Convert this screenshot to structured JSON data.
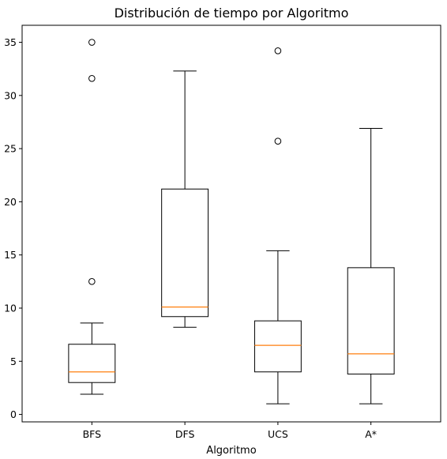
{
  "chart_data": {
    "type": "boxplot",
    "title": "Distribución de tiempo por Algoritmo",
    "xlabel": "Algoritmo",
    "ylabel": "",
    "categories": [
      "BFS",
      "DFS",
      "UCS",
      "A*"
    ],
    "ylim": [
      -0.7,
      36.6
    ],
    "yticks": [
      0,
      5,
      10,
      15,
      20,
      25,
      30,
      35
    ],
    "grid": false,
    "boxes": [
      {
        "category": "BFS",
        "whisker_low": 1.9,
        "q1": 3.0,
        "median": 4.0,
        "q3": 6.6,
        "whisker_high": 8.6,
        "outliers": [
          12.5,
          31.6,
          35.0
        ]
      },
      {
        "category": "DFS",
        "whisker_low": 8.2,
        "q1": 9.2,
        "median": 10.1,
        "q3": 21.2,
        "whisker_high": 32.3,
        "outliers": []
      },
      {
        "category": "UCS",
        "whisker_low": 1.0,
        "q1": 4.0,
        "median": 6.5,
        "q3": 8.8,
        "whisker_high": 15.4,
        "outliers": [
          25.7,
          34.2
        ]
      },
      {
        "category": "A*",
        "whisker_low": 1.0,
        "q1": 3.8,
        "median": 5.7,
        "q3": 13.8,
        "whisker_high": 26.9,
        "outliers": []
      }
    ],
    "colors": {
      "box": "#000000",
      "median": "#ff7f0e",
      "outlier": "#000000"
    }
  }
}
